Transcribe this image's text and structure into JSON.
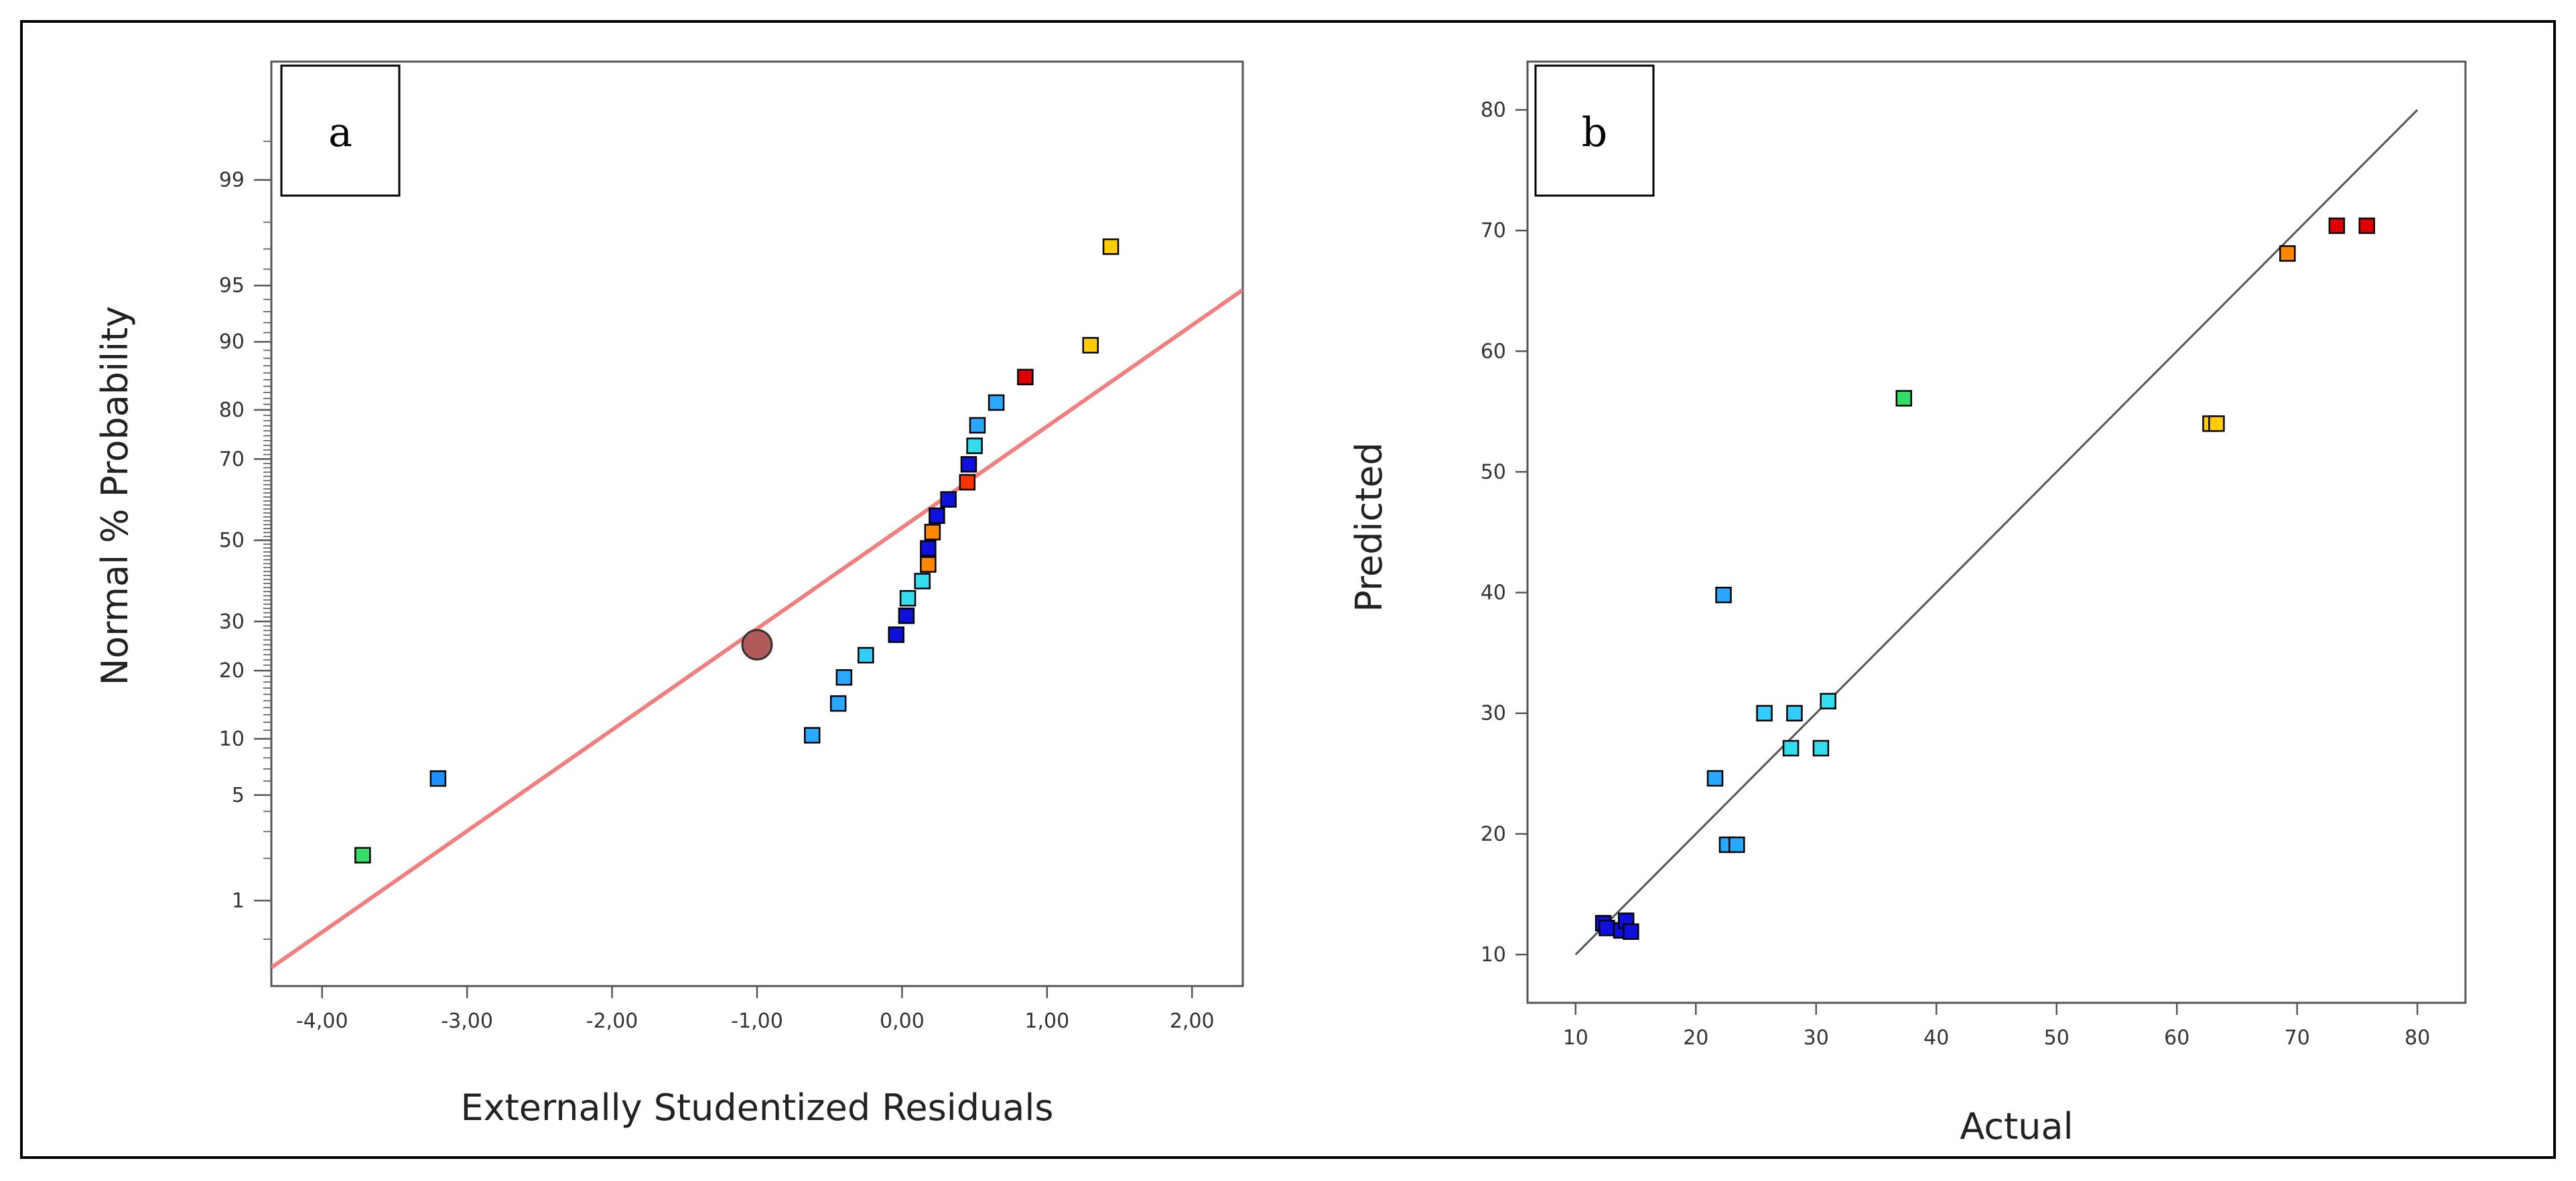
{
  "chart_data": [
    {
      "type": "scatter",
      "panel_label": "a",
      "title": "",
      "xlabel": "Externally Studentized Residuals",
      "ylabel": "Normal % Probability",
      "xlim": [
        -4.35,
        2.35
      ],
      "ylim_prob": [
        0.2,
        99.9
      ],
      "xticks": [
        -4,
        -3,
        -2,
        -1,
        0,
        1,
        2
      ],
      "xtick_labels": [
        "-4,00",
        "-3,00",
        "-2,00",
        "-1,00",
        "0,00",
        "1,00",
        "2,00"
      ],
      "yticks_labeled": [
        1,
        5,
        10,
        20,
        30,
        50,
        70,
        80,
        90,
        95,
        99
      ],
      "ytick_labels": [
        "1",
        "5",
        "10",
        "20",
        "30",
        "50",
        "70",
        "80",
        "90",
        "95",
        "99"
      ],
      "reference_line": {
        "color": "#f08080",
        "x": [
          -4.35,
          2.35
        ],
        "p": [
          0.29,
          94.7
        ]
      },
      "highlight_point": {
        "x": -1.0,
        "p": 25,
        "color": "#b05a5a"
      },
      "points": [
        {
          "x": -3.72,
          "p": 2.1,
          "color": "#33dd66"
        },
        {
          "x": -3.2,
          "p": 6.2,
          "color": "#1e90ff"
        },
        {
          "x": -0.62,
          "p": 10.4,
          "color": "#29a8ff"
        },
        {
          "x": -0.44,
          "p": 14.6,
          "color": "#29a8ff"
        },
        {
          "x": -0.4,
          "p": 18.8,
          "color": "#29a8ff"
        },
        {
          "x": -0.25,
          "p": 22.9,
          "color": "#33ccff"
        },
        {
          "x": -0.04,
          "p": 27.1,
          "color": "#1010dd"
        },
        {
          "x": 0.03,
          "p": 31.3,
          "color": "#1010dd"
        },
        {
          "x": 0.04,
          "p": 35.4,
          "color": "#33ddee"
        },
        {
          "x": 0.14,
          "p": 39.6,
          "color": "#33ddee"
        },
        {
          "x": 0.18,
          "p": 43.8,
          "color": "#ff8800"
        },
        {
          "x": 0.18,
          "p": 47.9,
          "color": "#1010dd"
        },
        {
          "x": 0.21,
          "p": 52.1,
          "color": "#ff8800"
        },
        {
          "x": 0.24,
          "p": 56.3,
          "color": "#1010dd"
        },
        {
          "x": 0.32,
          "p": 60.4,
          "color": "#1010dd"
        },
        {
          "x": 0.45,
          "p": 64.6,
          "color": "#ff3300"
        },
        {
          "x": 0.46,
          "p": 68.8,
          "color": "#1010dd"
        },
        {
          "x": 0.5,
          "p": 72.9,
          "color": "#33ddee"
        },
        {
          "x": 0.52,
          "p": 77.1,
          "color": "#29a8ff"
        },
        {
          "x": 0.65,
          "p": 81.3,
          "color": "#29a8ff"
        },
        {
          "x": 0.85,
          "p": 85.4,
          "color": "#dd0000"
        },
        {
          "x": 1.3,
          "p": 89.6,
          "color": "#ffcc00"
        },
        {
          "x": 1.44,
          "p": 97.1,
          "color": "#ffcc00"
        }
      ]
    },
    {
      "type": "scatter",
      "panel_label": "b",
      "title": "",
      "xlabel": "Actual",
      "ylabel": "Predicted",
      "xlim": [
        6,
        84
      ],
      "ylim": [
        6,
        84
      ],
      "xticks": [
        10,
        20,
        30,
        40,
        50,
        60,
        70,
        80
      ],
      "yticks": [
        10,
        20,
        30,
        40,
        50,
        60,
        70,
        80
      ],
      "xtick_labels": [
        "10",
        "20",
        "30",
        "40",
        "50",
        "60",
        "70",
        "80"
      ],
      "ytick_labels": [
        "10",
        "20",
        "30",
        "40",
        "50",
        "60",
        "70",
        "80"
      ],
      "reference_line": {
        "color": "#555555",
        "x": [
          10,
          80
        ],
        "y": [
          10,
          80
        ]
      },
      "points": [
        {
          "x": 12.3,
          "y": 12.6,
          "color": "#1010dd"
        },
        {
          "x": 12.6,
          "y": 12.2,
          "color": "#1010dd"
        },
        {
          "x": 13.8,
          "y": 12.0,
          "color": "#1010dd"
        },
        {
          "x": 14.2,
          "y": 12.8,
          "color": "#1010dd"
        },
        {
          "x": 14.6,
          "y": 11.9,
          "color": "#1010dd"
        },
        {
          "x": 21.6,
          "y": 24.6,
          "color": "#29a8ff"
        },
        {
          "x": 22.3,
          "y": 39.8,
          "color": "#29a8ff"
        },
        {
          "x": 22.6,
          "y": 19.1,
          "color": "#29a8ff"
        },
        {
          "x": 23.4,
          "y": 19.1,
          "color": "#29a8ff"
        },
        {
          "x": 25.7,
          "y": 30.0,
          "color": "#33ccff"
        },
        {
          "x": 27.9,
          "y": 27.1,
          "color": "#33ddee"
        },
        {
          "x": 28.2,
          "y": 30.0,
          "color": "#33ccff"
        },
        {
          "x": 30.4,
          "y": 27.1,
          "color": "#33ddee"
        },
        {
          "x": 31.0,
          "y": 31.0,
          "color": "#33ddee"
        },
        {
          "x": 37.3,
          "y": 56.1,
          "color": "#33dd66"
        },
        {
          "x": 62.8,
          "y": 54.0,
          "color": "#ffcc00"
        },
        {
          "x": 63.3,
          "y": 54.0,
          "color": "#ffcc00"
        },
        {
          "x": 69.2,
          "y": 68.1,
          "color": "#ff8800"
        },
        {
          "x": 73.3,
          "y": 70.4,
          "color": "#dd0000"
        },
        {
          "x": 75.8,
          "y": 70.4,
          "color": "#dd0000"
        }
      ]
    }
  ]
}
